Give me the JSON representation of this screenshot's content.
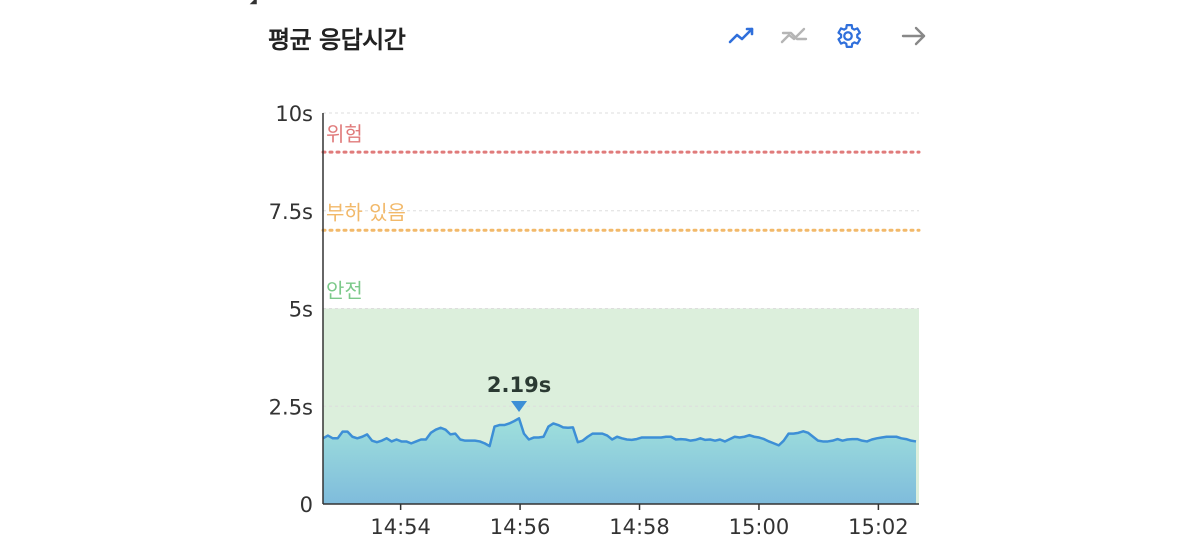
{
  "title": "평균 응답시간",
  "toolbar": {
    "icons": [
      "line-chart-icon",
      "trend-compare-icon",
      "gear-icon",
      "arrow-right-icon"
    ],
    "colors": {
      "active": "#2f6fdb",
      "inactive": "#b5b5b5",
      "settings": "#2f6fdb",
      "arrow": "#888888"
    }
  },
  "chart_data": {
    "type": "area",
    "title": "평균 응답시간",
    "y_ticks": [
      "10s",
      "7.5s",
      "5s",
      "2.5s",
      "0"
    ],
    "y_tick_values": [
      10,
      7.5,
      5,
      2.5,
      0
    ],
    "ylim": [
      0,
      10
    ],
    "x_ticks": [
      "14:54",
      "14:56",
      "14:58",
      "15:00",
      "15:02"
    ],
    "x_tick_minutes": [
      54,
      56,
      58,
      60,
      62
    ],
    "xlim_minutes": [
      52.7,
      62.68
    ],
    "grid": true,
    "thresholds": [
      {
        "label": "위험",
        "value": 9.0,
        "color": "#e07b7b"
      },
      {
        "label": "부하 있음",
        "value": 7.0,
        "color": "#f2b96a"
      }
    ],
    "safe_zone": {
      "label": "안전",
      "from": 0,
      "to": 5,
      "fill": "#dcefdc",
      "label_color": "#7cc98a"
    },
    "series": [
      {
        "color": "#3d8fd6",
        "fill_top": "#9fe0dc",
        "fill_bottom": "#7fbcdc",
        "values": [
          1.68,
          1.75,
          1.68,
          1.68,
          1.85,
          1.85,
          1.72,
          1.68,
          1.72,
          1.78,
          1.62,
          1.58,
          1.62,
          1.68,
          1.6,
          1.65,
          1.6,
          1.6,
          1.55,
          1.6,
          1.65,
          1.65,
          1.82,
          1.9,
          1.95,
          1.9,
          1.78,
          1.8,
          1.65,
          1.62,
          1.62,
          1.62,
          1.6,
          1.55,
          1.48,
          1.98,
          2.02,
          2.02,
          2.06,
          2.12,
          2.19,
          1.8,
          1.65,
          1.7,
          1.7,
          1.72,
          1.98,
          2.06,
          2.02,
          1.96,
          1.95,
          1.96,
          1.58,
          1.62,
          1.72,
          1.8,
          1.8,
          1.8,
          1.75,
          1.65,
          1.72,
          1.68,
          1.65,
          1.64,
          1.66,
          1.7,
          1.7,
          1.7,
          1.7,
          1.7,
          1.72,
          1.72,
          1.65,
          1.66,
          1.65,
          1.62,
          1.64,
          1.68,
          1.64,
          1.65,
          1.62,
          1.65,
          1.6,
          1.66,
          1.72,
          1.7,
          1.72,
          1.76,
          1.72,
          1.7,
          1.66,
          1.6,
          1.55,
          1.5,
          1.62,
          1.8,
          1.8,
          1.82,
          1.86,
          1.82,
          1.72,
          1.62,
          1.6,
          1.6,
          1.62,
          1.66,
          1.62,
          1.65,
          1.66,
          1.66,
          1.62,
          1.6,
          1.65,
          1.68,
          1.7,
          1.72,
          1.72,
          1.72,
          1.68,
          1.66,
          1.62,
          1.6
        ]
      }
    ],
    "annotation": {
      "text": "2.19s",
      "index": 40,
      "value": 2.19,
      "marker_color": "#3d8fd6"
    }
  }
}
